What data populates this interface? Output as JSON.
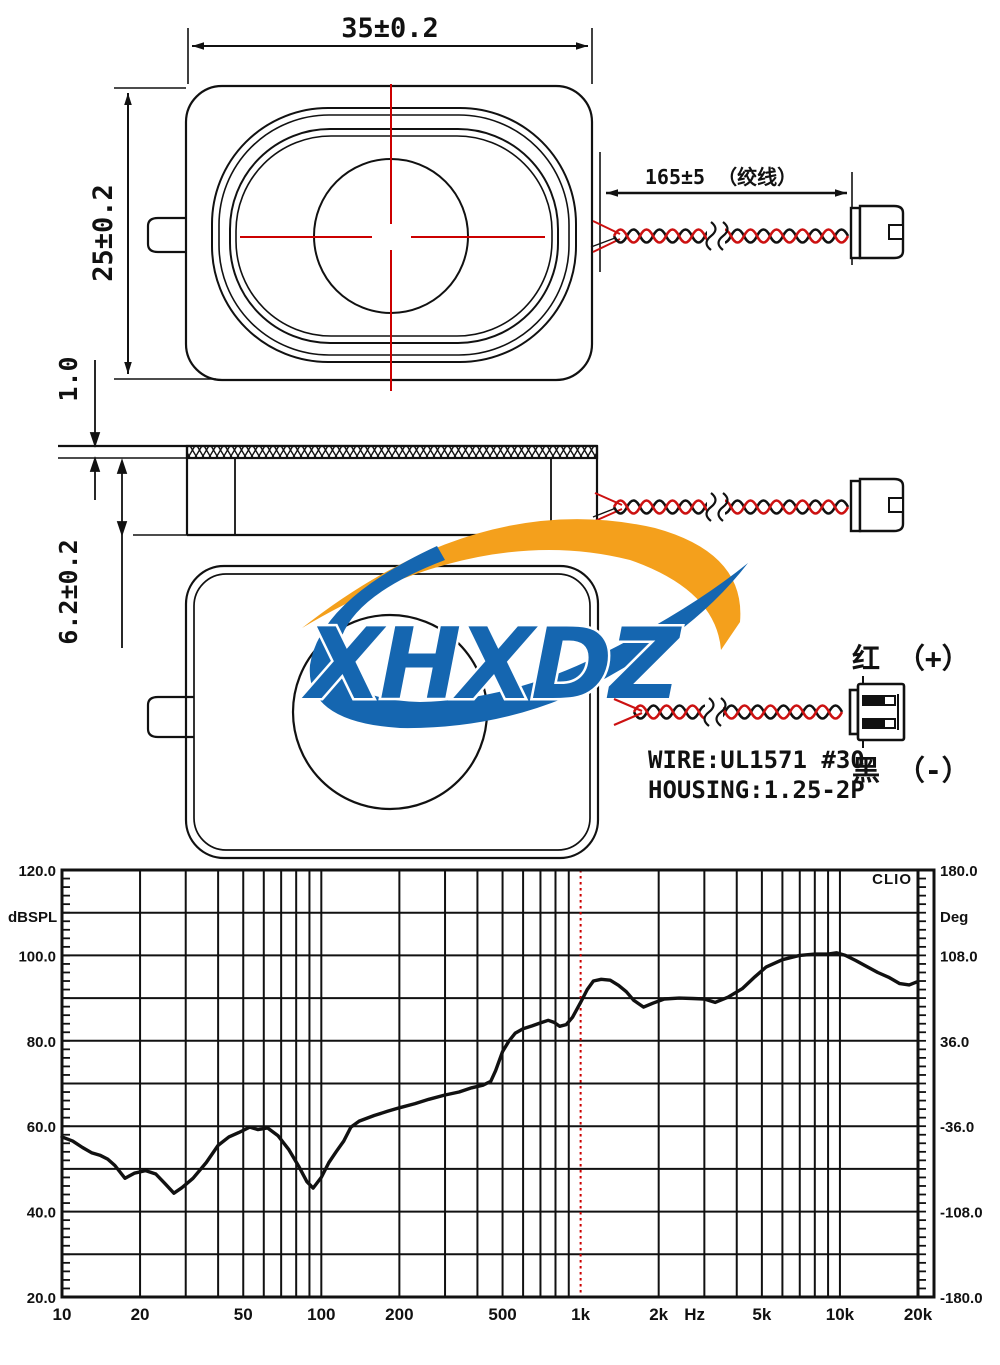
{
  "drawing": {
    "dim_width": "35±0.2",
    "dim_height": "25±0.2",
    "dim_top_thickness": "1.0",
    "dim_depth": "6.2±0.2",
    "dim_wire_length": "165±5 （绞线）",
    "red_wire_label": "红 （+）",
    "black_wire_label": "黑 （-）",
    "wire_spec": "WIRE:UL1571 #30",
    "housing_spec": "HOUSING:1.25-2P",
    "logo_text": "XHXDZ",
    "colors": {
      "logo_blue": "#1566b0",
      "logo_orange": "#f4a01c",
      "centerline_red": "#cc0000",
      "wire_red": "#cc1111",
      "line_black": "#111111"
    }
  },
  "chart_data": {
    "type": "line",
    "brand": "CLIO",
    "ylabel_left": "dBSPL",
    "ylabel_right": "Deg",
    "xlabel": "Hz",
    "x_scale": "log",
    "xlim": [
      10,
      20000
    ],
    "ylim_left": [
      20,
      120
    ],
    "ylim_right": [
      -180,
      180
    ],
    "grid": true,
    "marker_freq": 1000,
    "xticks": [
      {
        "f": 10,
        "label": "10"
      },
      {
        "f": 20,
        "label": "20"
      },
      {
        "f": 50,
        "label": "50"
      },
      {
        "f": 100,
        "label": "100"
      },
      {
        "f": 200,
        "label": "200"
      },
      {
        "f": 500,
        "label": "500"
      },
      {
        "f": 1000,
        "label": "1k"
      },
      {
        "f": 2000,
        "label": "2k"
      },
      {
        "f": 5000,
        "label": "5k"
      },
      {
        "f": 10000,
        "label": "10k"
      },
      {
        "f": 20000,
        "label": "20k"
      }
    ],
    "yticks_left": [
      {
        "v": 120,
        "label": "120.0"
      },
      {
        "v": 100,
        "label": "100.0"
      },
      {
        "v": 80,
        "label": "80.0"
      },
      {
        "v": 60,
        "label": "60.0"
      },
      {
        "v": 40,
        "label": "40.0"
      },
      {
        "v": 20,
        "label": "20.0"
      }
    ],
    "yticks_right": [
      {
        "v": 120,
        "label": "180.0"
      },
      {
        "v": 100,
        "label": "108.0"
      },
      {
        "v": 80,
        "label": "36.0"
      },
      {
        "v": 60,
        "label": "-36.0"
      },
      {
        "v": 40,
        "label": "-108.0"
      },
      {
        "v": 20,
        "label": "-180.0"
      }
    ],
    "series": [
      {
        "name": "SPL",
        "points": [
          [
            10,
            57.5
          ],
          [
            11,
            56.5
          ],
          [
            12,
            55.0
          ],
          [
            13,
            53.8
          ],
          [
            14,
            53.2
          ],
          [
            15,
            52.3
          ],
          [
            16,
            50.8
          ],
          [
            17.5,
            47.8
          ],
          [
            19,
            49.0
          ],
          [
            21,
            49.6
          ],
          [
            23,
            48.8
          ],
          [
            25,
            46.5
          ],
          [
            27,
            44.3
          ],
          [
            29,
            45.6
          ],
          [
            32,
            47.8
          ],
          [
            36,
            51.5
          ],
          [
            40,
            55.5
          ],
          [
            44,
            57.5
          ],
          [
            48,
            58.5
          ],
          [
            53,
            59.8
          ],
          [
            57,
            59.2
          ],
          [
            62,
            59.6
          ],
          [
            68,
            57.8
          ],
          [
            75,
            54.5
          ],
          [
            82,
            50.5
          ],
          [
            88,
            47.0
          ],
          [
            93,
            45.5
          ],
          [
            100,
            48.0
          ],
          [
            107,
            51.5
          ],
          [
            114,
            54.0
          ],
          [
            122,
            56.5
          ],
          [
            130,
            59.8
          ],
          [
            140,
            61.2
          ],
          [
            160,
            62.5
          ],
          [
            180,
            63.5
          ],
          [
            200,
            64.3
          ],
          [
            230,
            65.3
          ],
          [
            260,
            66.3
          ],
          [
            300,
            67.3
          ],
          [
            340,
            68.0
          ],
          [
            380,
            69.0
          ],
          [
            420,
            69.6
          ],
          [
            450,
            70.5
          ],
          [
            470,
            73.0
          ],
          [
            500,
            77.5
          ],
          [
            530,
            80.0
          ],
          [
            560,
            81.8
          ],
          [
            600,
            82.8
          ],
          [
            650,
            83.5
          ],
          [
            700,
            84.2
          ],
          [
            750,
            84.8
          ],
          [
            790,
            84.3
          ],
          [
            830,
            83.4
          ],
          [
            880,
            83.8
          ],
          [
            930,
            85.5
          ],
          [
            1000,
            89.0
          ],
          [
            1060,
            92.0
          ],
          [
            1120,
            94.0
          ],
          [
            1200,
            94.4
          ],
          [
            1300,
            94.2
          ],
          [
            1400,
            93.0
          ],
          [
            1500,
            91.5
          ],
          [
            1600,
            89.5
          ],
          [
            1750,
            87.9
          ],
          [
            1900,
            88.8
          ],
          [
            2100,
            89.8
          ],
          [
            2400,
            90.0
          ],
          [
            2700,
            89.9
          ],
          [
            3000,
            89.8
          ],
          [
            3300,
            89.0
          ],
          [
            3700,
            90.2
          ],
          [
            4200,
            92.2
          ],
          [
            4700,
            95.0
          ],
          [
            5200,
            97.3
          ],
          [
            6000,
            99.0
          ],
          [
            7000,
            100.0
          ],
          [
            8000,
            100.3
          ],
          [
            9000,
            100.3
          ],
          [
            9700,
            100.6
          ],
          [
            10500,
            100.0
          ],
          [
            11500,
            98.8
          ],
          [
            12500,
            97.6
          ],
          [
            14000,
            96.0
          ],
          [
            15500,
            94.8
          ],
          [
            17000,
            93.4
          ],
          [
            18500,
            93.1
          ],
          [
            20000,
            93.9
          ]
        ]
      }
    ]
  }
}
